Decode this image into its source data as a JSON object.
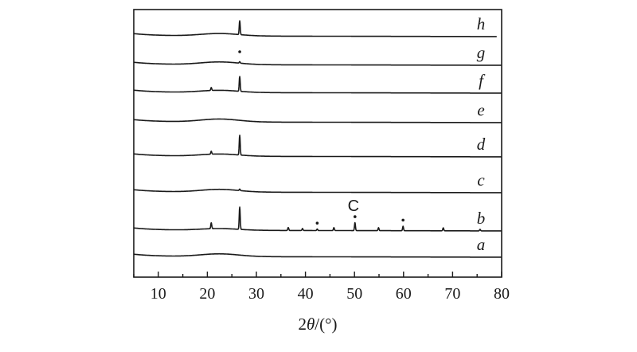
{
  "chart_data": {
    "type": "line",
    "title": "",
    "xlabel_prefix": "2",
    "xlabel_symbol": "θ",
    "xlabel_suffix": "/(°)",
    "ylabel": "",
    "xlim": [
      5,
      80
    ],
    "x_ticks": [
      10,
      20,
      30,
      40,
      50,
      60,
      70,
      80
    ],
    "x_tick_labels": [
      "10",
      "20",
      "30",
      "40",
      "50",
      "60",
      "70",
      "80"
    ],
    "grid": false,
    "series": [
      {
        "name": "a",
        "hump": 0.55,
        "peaks": []
      },
      {
        "name": "b",
        "hump": 0.35,
        "peaks": [
          {
            "x": 20.8,
            "h": 1.2
          },
          {
            "x": 26.6,
            "h": 4.5
          },
          {
            "x": 36.5,
            "h": 0.6
          },
          {
            "x": 39.4,
            "h": 0.4
          },
          {
            "x": 42.4,
            "h": 0.3
          },
          {
            "x": 45.8,
            "h": 0.6
          },
          {
            "x": 50.1,
            "h": 1.6
          },
          {
            "x": 54.9,
            "h": 0.6
          },
          {
            "x": 59.9,
            "h": 0.9
          },
          {
            "x": 68.1,
            "h": 0.6
          },
          {
            "x": 75.6,
            "h": 0.3
          }
        ]
      },
      {
        "name": "c",
        "hump": 0.55,
        "peaks": [
          {
            "x": 26.6,
            "h": 0.3
          }
        ]
      },
      {
        "name": "d",
        "hump": 0.45,
        "peaks": [
          {
            "x": 20.8,
            "h": 0.6
          },
          {
            "x": 26.6,
            "h": 4.0
          }
        ]
      },
      {
        "name": "e",
        "hump": 0.6,
        "peaks": []
      },
      {
        "name": "f",
        "hump": 0.45,
        "peaks": [
          {
            "x": 20.8,
            "h": 0.6
          },
          {
            "x": 26.6,
            "h": 3.0
          }
        ]
      },
      {
        "name": "g",
        "hump": 0.55,
        "peaks": [
          {
            "x": 26.6,
            "h": 0.3
          }
        ]
      },
      {
        "name": "h",
        "hump": 0.5,
        "peaks": [
          {
            "x": 26.6,
            "h": 2.8
          }
        ]
      }
    ],
    "annotations": [
      {
        "text": "C",
        "x": 50.1,
        "series": "b"
      }
    ],
    "markers": [
      {
        "series": "b",
        "x": 42.4
      },
      {
        "series": "b",
        "x": 50.1
      },
      {
        "series": "b",
        "x": 59.9
      },
      {
        "series": "g",
        "x": 26.6
      }
    ]
  }
}
